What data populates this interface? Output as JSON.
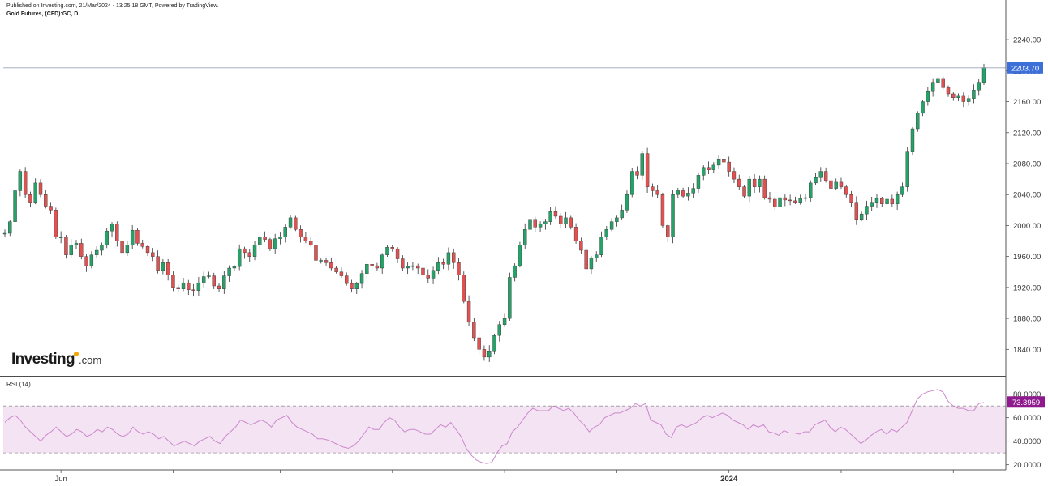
{
  "header": {
    "published": "Published on Investing.com, 21/Mar/2024 - 13:25:18 GMT, Powered by TradingView.",
    "symbol": "Gold Futures, (CFD):GC, D"
  },
  "logo": {
    "text": "Investing",
    "suffix": ".com"
  },
  "colors": {
    "up": "#26a269",
    "down": "#e05252",
    "wick": "#333333",
    "rsi_line": "#cc88cc",
    "rsi_band": "#f3e3f3",
    "price_tag": "#3d6fd9",
    "rsi_tag": "#8e1a8e"
  },
  "chart_data": [
    {
      "type": "candlestick",
      "title": "Gold Futures, (CFD):GC, D",
      "ylim": [
        1810,
        2260
      ],
      "y_ticks": [
        "2240.00",
        "2200.00",
        "2160.00",
        "2120.00",
        "2080.00",
        "2040.00",
        "2000.00",
        "1960.00",
        "1920.00",
        "1880.00",
        "1840.00"
      ],
      "x_ticks": [
        "Jun",
        "2024"
      ],
      "last_price": "2203.70",
      "last_value": 2203.7,
      "start": 1990,
      "closes": [
        1990,
        2005,
        2045,
        2070,
        2040,
        2030,
        2055,
        2040,
        2025,
        2020,
        1985,
        1985,
        1962,
        1975,
        1977,
        1960,
        1948,
        1962,
        1968,
        1975,
        1993,
        2002,
        1980,
        1965,
        1975,
        1994,
        1977,
        1973,
        1965,
        1960,
        1942,
        1952,
        1936,
        1920,
        1918,
        1926,
        1917,
        1916,
        1926,
        1934,
        1935,
        1922,
        1918,
        1935,
        1945,
        1947,
        1970,
        1965,
        1960,
        1975,
        1985,
        1982,
        1970,
        1983,
        1985,
        1998,
        2010,
        1995,
        1985,
        1980,
        1975,
        1955,
        1955,
        1952,
        1945,
        1940,
        1935,
        1925,
        1918,
        1925,
        1938,
        1950,
        1948,
        1945,
        1962,
        1972,
        1970,
        1957,
        1945,
        1947,
        1948,
        1945,
        1936,
        1932,
        1942,
        1952,
        1950,
        1965,
        1952,
        1936,
        1902,
        1875,
        1855,
        1840,
        1830,
        1838,
        1858,
        1872,
        1880,
        1933,
        1948,
        1975,
        1995,
        2008,
        1998,
        2002,
        2005,
        2018,
        2012,
        2002,
        2010,
        1998,
        1980,
        1968,
        1944,
        1958,
        1962,
        1985,
        1995,
        2005,
        2010,
        2020,
        2040,
        2070,
        2065,
        2093,
        2050,
        2045,
        2040,
        2000,
        1985,
        2040,
        2045,
        2038,
        2042,
        2048,
        2065,
        2075,
        2072,
        2078,
        2086,
        2082,
        2070,
        2060,
        2050,
        2038,
        2060,
        2050,
        2060,
        2036,
        2034,
        2024,
        2036,
        2033,
        2032,
        2030,
        2035,
        2036,
        2055,
        2062,
        2070,
        2058,
        2048,
        2056,
        2050,
        2040,
        2030,
        2008,
        2015,
        2025,
        2030,
        2035,
        2028,
        2034,
        2028,
        2040,
        2050,
        2095,
        2125,
        2145,
        2160,
        2174,
        2185,
        2190,
        2178,
        2170,
        2165,
        2168,
        2160,
        2164,
        2175,
        2185,
        2204
      ]
    },
    {
      "type": "line",
      "title": "RSI (14)",
      "ylim": [
        17,
        86
      ],
      "y_ticks": [
        "80.0000",
        "60.0000",
        "40.0000",
        "20.0000"
      ],
      "band": [
        30,
        70
      ],
      "last_label": "73.3959",
      "last_value": 73.4,
      "values": [
        56,
        60,
        62,
        58,
        52,
        48,
        44,
        40,
        45,
        48,
        52,
        48,
        44,
        46,
        50,
        48,
        44,
        46,
        50,
        48,
        52,
        50,
        46,
        44,
        46,
        52,
        48,
        46,
        48,
        46,
        42,
        44,
        40,
        36,
        38,
        40,
        38,
        36,
        40,
        42,
        44,
        40,
        38,
        44,
        48,
        52,
        58,
        56,
        54,
        56,
        58,
        56,
        52,
        58,
        60,
        62,
        56,
        52,
        50,
        48,
        46,
        42,
        42,
        41,
        39,
        37,
        35,
        34,
        36,
        40,
        46,
        52,
        50,
        50,
        56,
        60,
        58,
        52,
        48,
        50,
        50,
        48,
        46,
        46,
        50,
        54,
        52,
        56,
        50,
        44,
        34,
        28,
        24,
        22,
        21,
        22,
        30,
        36,
        38,
        48,
        52,
        58,
        64,
        68,
        66,
        66,
        66,
        70,
        68,
        66,
        68,
        64,
        58,
        54,
        48,
        52,
        54,
        60,
        62,
        64,
        64,
        66,
        68,
        72,
        70,
        72,
        58,
        56,
        54,
        46,
        43,
        52,
        54,
        52,
        54,
        56,
        60,
        62,
        60,
        62,
        64,
        62,
        58,
        56,
        54,
        50,
        54,
        52,
        54,
        48,
        47,
        45,
        49,
        47,
        47,
        46,
        48,
        48,
        54,
        56,
        58,
        52,
        48,
        52,
        50,
        46,
        42,
        38,
        41,
        45,
        48,
        50,
        46,
        50,
        48,
        52,
        56,
        66,
        76,
        80,
        82,
        83,
        84,
        82,
        74,
        70,
        68,
        68,
        66,
        66,
        72,
        73
      ]
    }
  ]
}
